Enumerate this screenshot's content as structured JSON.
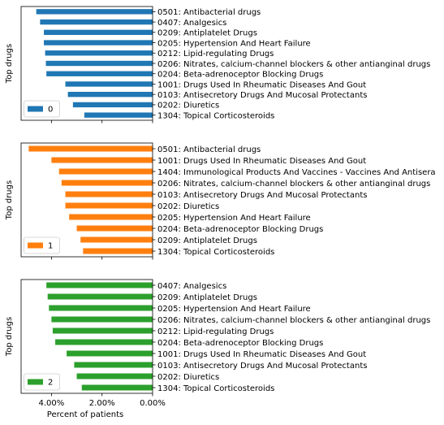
{
  "chart_data": [
    {
      "type": "bar",
      "orientation": "horizontal",
      "ylabel": "Top drugs",
      "xlabel": "",
      "xlim": [
        0,
        5.2
      ],
      "x_inverted": true,
      "xticks": [
        4,
        2,
        0
      ],
      "xtick_labels": [
        "",
        "",
        ""
      ],
      "color": "#1f77b4",
      "legend": {
        "label": "0",
        "placement": "lower-left"
      },
      "categories": [
        "0501: Antibacterial drugs",
        "0407: Analgesics",
        "0209: Antiplatelet Drugs",
        "0205: Hypertension And Heart Failure",
        "0212: Lipid-regulating Drugs",
        "0206: Nitrates, calcium-channel blockers & other antianginal drugs",
        "0204: Beta-adrenoceptor Blocking Drugs",
        "1001: Drugs Used In Rheumatic Diseases And Gout",
        "0103: Antisecretory Drugs And Mucosal Protectants",
        "0202: Diuretics",
        "1304: Topical Corticosteroids"
      ],
      "values": [
        4.6,
        4.45,
        4.3,
        4.3,
        4.25,
        4.22,
        4.2,
        3.45,
        3.35,
        3.15,
        2.7
      ]
    },
    {
      "type": "bar",
      "orientation": "horizontal",
      "ylabel": "Top drugs",
      "xlabel": "",
      "xlim": [
        0,
        5.2
      ],
      "x_inverted": true,
      "xticks": [
        4,
        2,
        0
      ],
      "xtick_labels": [
        "",
        "",
        ""
      ],
      "color": "#ff7f0e",
      "legend": {
        "label": "1",
        "placement": "lower-left"
      },
      "categories": [
        "0501: Antibacterial drugs",
        "1001: Drugs Used In Rheumatic Diseases And Gout",
        "1404: Immunological Products And Vaccines - Vaccines And Antisera",
        "0206: Nitrates, calcium-channel blockers & other antianginal drugs",
        "0103: Antisecretory Drugs And Mucosal Protectants",
        "0202: Diuretics",
        "0205: Hypertension And Heart Failure",
        "0204: Beta-adrenoceptor Blocking Drugs",
        "0209: Antiplatelet Drugs",
        "1304: Topical Corticosteroids"
      ],
      "values": [
        4.9,
        4.0,
        3.7,
        3.6,
        3.45,
        3.45,
        3.3,
        3.0,
        2.85,
        2.75
      ]
    },
    {
      "type": "bar",
      "orientation": "horizontal",
      "ylabel": "Top drugs",
      "xlabel": "Percent of patients",
      "xlim": [
        0,
        5.2
      ],
      "x_inverted": true,
      "xticks": [
        4,
        2,
        0
      ],
      "xtick_labels": [
        "4.00%",
        "2.00%",
        "0.00%"
      ],
      "color": "#2ca02c",
      "legend": {
        "label": "2",
        "placement": "lower-left"
      },
      "categories": [
        "0407: Analgesics",
        "0209: Antiplatelet Drugs",
        "0205: Hypertension And Heart Failure",
        "0206: Nitrates, calcium-channel blockers & other antianginal drugs",
        "0212: Lipid-regulating Drugs",
        "0204: Beta-adrenoceptor Blocking Drugs",
        "1001: Drugs Used In Rheumatic Diseases And Gout",
        "0103: Antisecretory Drugs And Mucosal Protectants",
        "0202: Diuretics",
        "1304: Topical Corticosteroids"
      ],
      "values": [
        4.2,
        4.15,
        4.1,
        4.0,
        3.95,
        3.85,
        3.4,
        3.1,
        3.0,
        2.8
      ]
    }
  ]
}
